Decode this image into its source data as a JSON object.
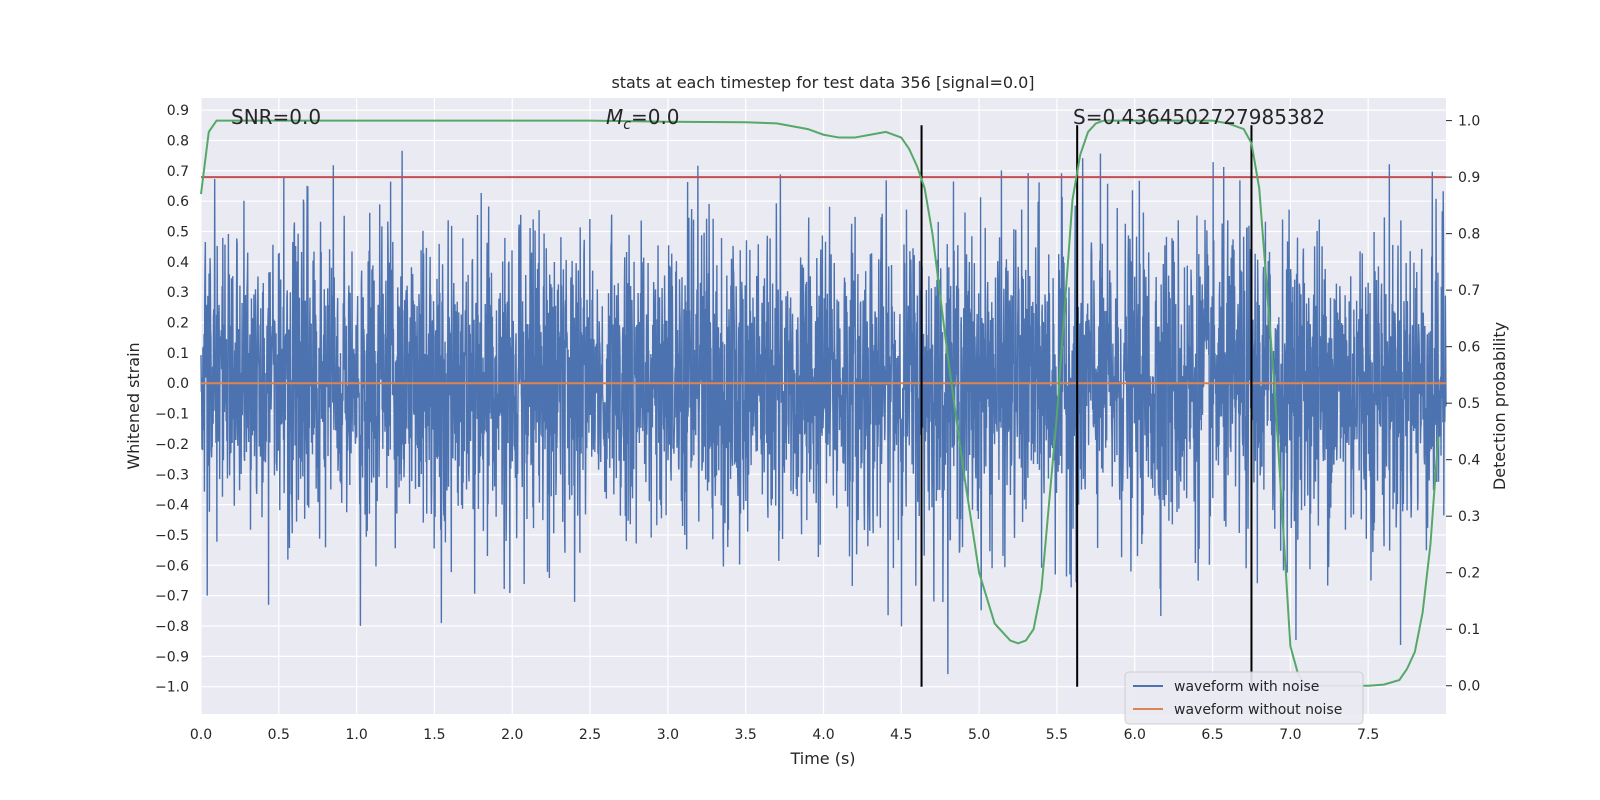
{
  "chart_data": {
    "type": "line",
    "title": "stats at each timestep for test data 356 [signal=0.0]",
    "xlabel": "Time (s)",
    "ylabel": "Whitened strain",
    "y2label": "Detection probability",
    "xlim": [
      0.0,
      8.0
    ],
    "ylim": [
      -1.09,
      0.94
    ],
    "y2lim": [
      -0.05,
      1.04
    ],
    "xticks": [
      "0.0",
      "0.5",
      "1.0",
      "1.5",
      "2.0",
      "2.5",
      "3.0",
      "3.5",
      "4.0",
      "4.5",
      "5.0",
      "5.5",
      "6.0",
      "6.5",
      "7.0",
      "7.5"
    ],
    "yticks": [
      "0.9",
      "0.8",
      "0.7",
      "0.6",
      "0.5",
      "0.4",
      "0.3",
      "0.2",
      "0.1",
      "0.0",
      "−0.1",
      "−0.2",
      "−0.3",
      "−0.4",
      "−0.5",
      "−0.6",
      "−0.7",
      "−0.8",
      "−0.9",
      "−1.0"
    ],
    "y2ticks": [
      "1.0",
      "0.9",
      "0.8",
      "0.7",
      "0.6",
      "0.5",
      "0.4",
      "0.3",
      "0.2",
      "0.1",
      "0.0"
    ],
    "grid": true,
    "legend_placement": "lower-right",
    "annotations": {
      "snr": "SNR=0.0",
      "mc_symbol": "M",
      "mc_sub": "c",
      "mc_value": "=0.0",
      "s_value": "S=0.4364502727985382"
    },
    "series": [
      {
        "name": "waveform with noise",
        "color": "#4c72b0",
        "description_type": "noise",
        "amplitude_typical": 0.3,
        "amplitude_max": 1.0
      },
      {
        "name": "waveform without noise",
        "color": "#dd8452",
        "values_constant": 0.0
      }
    ],
    "threshold": {
      "value": 0.9,
      "axis": "right",
      "color": "#c44e52"
    },
    "probability_curve": {
      "color": "#55a868",
      "x": [
        0.0,
        0.05,
        0.1,
        0.15,
        0.2,
        0.4,
        1.0,
        2.0,
        2.5,
        3.0,
        3.5,
        3.7,
        3.8,
        3.9,
        4.0,
        4.1,
        4.2,
        4.3,
        4.4,
        4.5,
        4.55,
        4.6,
        4.65,
        4.7,
        4.8,
        4.9,
        5.0,
        5.1,
        5.2,
        5.25,
        5.3,
        5.35,
        5.4,
        5.5,
        5.6,
        5.65,
        5.7,
        5.75,
        5.8,
        6.0,
        6.5,
        6.6,
        6.7,
        6.75,
        6.8,
        6.9,
        7.0,
        7.05,
        7.1,
        7.2,
        7.3,
        7.4,
        7.5,
        7.6,
        7.7,
        7.75,
        7.8,
        7.85,
        7.9,
        7.95
      ],
      "y": [
        0.87,
        0.98,
        1.0,
        1.0,
        1.0,
        1.0,
        1.0,
        1.0,
        1.0,
        0.998,
        0.997,
        0.995,
        0.99,
        0.985,
        0.975,
        0.97,
        0.97,
        0.975,
        0.98,
        0.97,
        0.95,
        0.92,
        0.88,
        0.8,
        0.58,
        0.38,
        0.2,
        0.11,
        0.08,
        0.075,
        0.08,
        0.1,
        0.17,
        0.48,
        0.86,
        0.94,
        0.98,
        0.995,
        1.0,
        1.0,
        1.0,
        0.995,
        0.985,
        0.96,
        0.88,
        0.52,
        0.07,
        0.02,
        0.0,
        0.0,
        0.0,
        0.0,
        0.0,
        0.002,
        0.01,
        0.03,
        0.06,
        0.13,
        0.25,
        0.44
      ]
    },
    "vlines": [
      {
        "x": 4.63,
        "y_from": -1.0,
        "y_to": 0.85
      },
      {
        "x": 5.63,
        "y_from": -1.0,
        "y_to": 0.85
      },
      {
        "x": 6.75,
        "y_from": -1.0,
        "y_to": 0.85
      }
    ]
  }
}
